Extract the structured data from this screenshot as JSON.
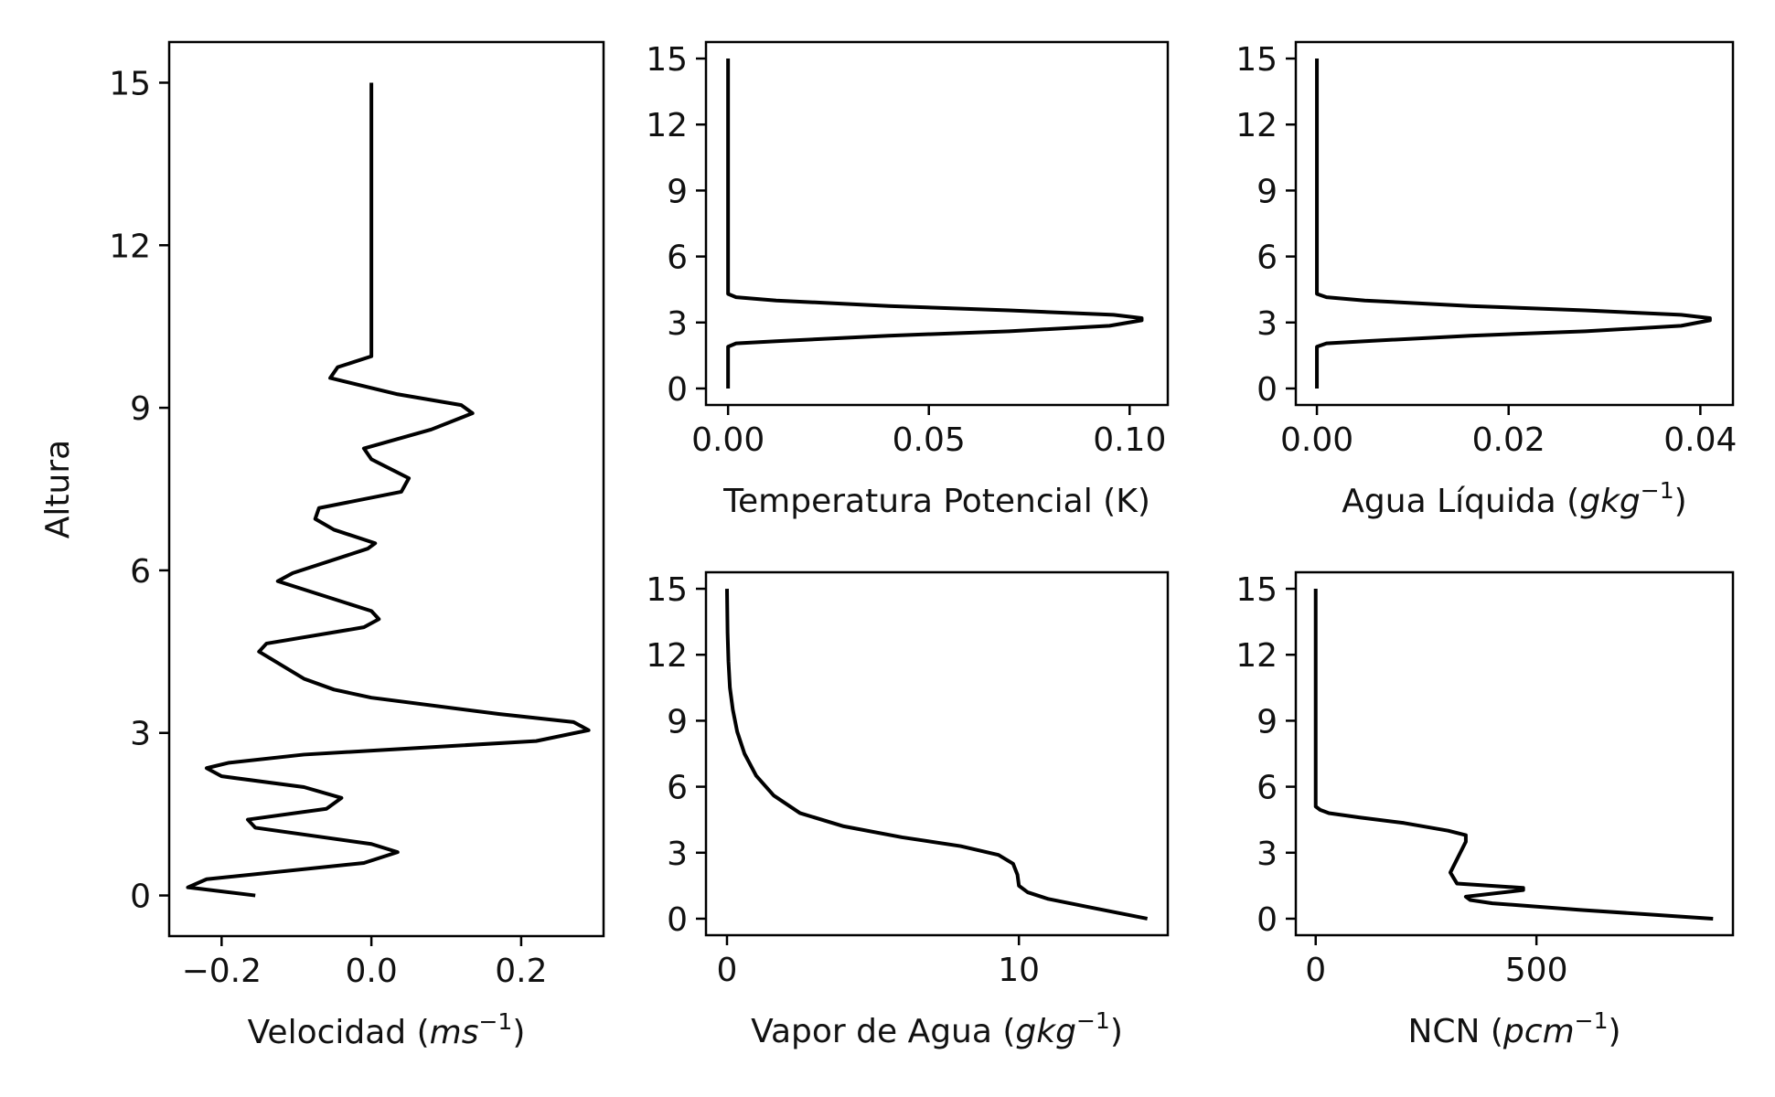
{
  "chart_data": [
    {
      "id": "velocidad",
      "type": "line",
      "xlabel": {
        "pre": "Velocidad (",
        "math": "ms",
        "sup": "−1",
        "post": ")"
      },
      "ylabel": "Altura",
      "xlim": [
        -0.27,
        0.31
      ],
      "ylim": [
        -0.75,
        15.75
      ],
      "xticks": [
        -0.2,
        0.0,
        0.2
      ],
      "xticklabels": [
        "−0.2",
        "0.0",
        "0.2"
      ],
      "yticks": [
        0,
        3,
        6,
        9,
        12,
        15
      ],
      "yticklabels": [
        "0",
        "3",
        "6",
        "9",
        "12",
        "15"
      ],
      "series": [
        {
          "x": [
            -0.155,
            -0.245,
            -0.22,
            -0.01,
            0.035,
            0.0,
            -0.155,
            -0.165,
            -0.06,
            -0.04,
            -0.09,
            -0.2,
            -0.22,
            -0.19,
            -0.09,
            0.22,
            0.29,
            0.27,
            0.17,
            0.0,
            -0.05,
            -0.09,
            -0.15,
            -0.14,
            -0.01,
            0.01,
            0.0,
            -0.125,
            -0.105,
            -0.005,
            0.005,
            -0.05,
            -0.075,
            -0.07,
            0.04,
            0.05,
            0.0,
            -0.01,
            0.08,
            0.135,
            0.12,
            0.035,
            -0.055,
            -0.045,
            0.0,
            0.0,
            0.0
          ],
          "y": [
            0.0,
            0.15,
            0.3,
            0.6,
            0.8,
            0.95,
            1.25,
            1.4,
            1.6,
            1.8,
            2.0,
            2.2,
            2.35,
            2.45,
            2.6,
            2.85,
            3.05,
            3.2,
            3.35,
            3.65,
            3.8,
            4.0,
            4.5,
            4.65,
            4.95,
            5.1,
            5.25,
            5.8,
            5.95,
            6.4,
            6.5,
            6.75,
            6.95,
            7.15,
            7.45,
            7.7,
            8.05,
            8.25,
            8.6,
            8.9,
            9.05,
            9.25,
            9.55,
            9.75,
            9.95,
            12.0,
            15.0
          ]
        }
      ]
    },
    {
      "id": "temperatura",
      "type": "line",
      "xlabel": {
        "pre": "Temperatura Potencial (K)",
        "math": "",
        "sup": "",
        "post": ""
      },
      "ylabel": "",
      "xlim": [
        -0.0055,
        0.1095
      ],
      "ylim": [
        -0.75,
        15.75
      ],
      "xticks": [
        0.0,
        0.05,
        0.1
      ],
      "xticklabels": [
        "0.00",
        "0.05",
        "0.10"
      ],
      "yticks": [
        0,
        3,
        6,
        9,
        12,
        15
      ],
      "yticklabels": [
        "0",
        "3",
        "6",
        "9",
        "12",
        "15"
      ],
      "series": [
        {
          "x": [
            0.0,
            0.0,
            0.0,
            0.002,
            0.012,
            0.04,
            0.07,
            0.095,
            0.103,
            0.103,
            0.096,
            0.07,
            0.04,
            0.012,
            0.002,
            0.0,
            0.0,
            0.0
          ],
          "y": [
            0.0,
            1.0,
            1.9,
            2.05,
            2.15,
            2.4,
            2.6,
            2.85,
            3.1,
            3.2,
            3.35,
            3.55,
            3.75,
            4.0,
            4.15,
            4.3,
            6.0,
            15.0
          ]
        }
      ]
    },
    {
      "id": "agua_liquida",
      "type": "line",
      "xlabel": {
        "pre": "Agua Líquida (",
        "math": "gkg",
        "sup": "−1",
        "post": ")"
      },
      "ylabel": "",
      "xlim": [
        -0.0022,
        0.0434
      ],
      "ylim": [
        -0.75,
        15.75
      ],
      "xticks": [
        0.0,
        0.02,
        0.04
      ],
      "xticklabels": [
        "0.00",
        "0.02",
        "0.04"
      ],
      "yticks": [
        0,
        3,
        6,
        9,
        12,
        15
      ],
      "yticklabels": [
        "0",
        "3",
        "6",
        "9",
        "12",
        "15"
      ],
      "series": [
        {
          "x": [
            0.0,
            0.0,
            0.0,
            0.001,
            0.005,
            0.016,
            0.028,
            0.038,
            0.041,
            0.041,
            0.038,
            0.028,
            0.016,
            0.005,
            0.001,
            0.0,
            0.0,
            0.0
          ],
          "y": [
            0.0,
            1.0,
            1.9,
            2.05,
            2.15,
            2.4,
            2.6,
            2.85,
            3.1,
            3.2,
            3.35,
            3.55,
            3.75,
            4.0,
            4.15,
            4.3,
            6.0,
            15.0
          ]
        }
      ]
    },
    {
      "id": "vapor",
      "type": "line",
      "xlabel": {
        "pre": "Vapor de Agua (",
        "math": "gkg",
        "sup": "−1",
        "post": ")"
      },
      "ylabel": "",
      "xlim": [
        -0.72,
        15.1
      ],
      "ylim": [
        -0.75,
        15.75
      ],
      "xticks": [
        0,
        10
      ],
      "xticklabels": [
        "0",
        "10"
      ],
      "yticks": [
        0,
        3,
        6,
        9,
        12,
        15
      ],
      "yticklabels": [
        "0",
        "3",
        "6",
        "9",
        "12",
        "15"
      ],
      "series": [
        {
          "x": [
            14.4,
            12.5,
            11.0,
            10.3,
            10.0,
            9.95,
            9.8,
            9.3,
            8.0,
            6.0,
            4.0,
            2.5,
            1.6,
            1.0,
            0.6,
            0.35,
            0.2,
            0.1,
            0.05,
            0.02,
            0.0
          ],
          "y": [
            0.0,
            0.5,
            0.9,
            1.2,
            1.5,
            2.0,
            2.5,
            2.9,
            3.3,
            3.7,
            4.2,
            4.8,
            5.6,
            6.5,
            7.5,
            8.5,
            9.5,
            10.5,
            11.7,
            13.0,
            15.0
          ]
        }
      ]
    },
    {
      "id": "ncn",
      "type": "line",
      "xlabel": {
        "pre": "NCN (",
        "math": "pcm",
        "sup": "−1",
        "post": ")"
      },
      "ylabel": "",
      "xlim": [
        -45,
        945
      ],
      "ylim": [
        -0.75,
        15.75
      ],
      "xticks": [
        0,
        500
      ],
      "xticklabels": [
        "0",
        "500"
      ],
      "yticks": [
        0,
        3,
        6,
        9,
        12,
        15
      ],
      "yticklabels": [
        "0",
        "3",
        "6",
        "9",
        "12",
        "15"
      ],
      "series": [
        {
          "x": [
            900,
            600,
            400,
            350,
            340,
            470,
            470,
            320,
            305,
            340,
            340,
            300,
            200,
            100,
            30,
            10,
            0,
            0,
            0,
            0
          ],
          "y": [
            0.0,
            0.4,
            0.7,
            0.85,
            1.0,
            1.3,
            1.4,
            1.6,
            2.1,
            3.5,
            3.8,
            4.0,
            4.35,
            4.6,
            4.8,
            4.95,
            5.1,
            6.0,
            10.0,
            15.0
          ]
        }
      ]
    }
  ]
}
